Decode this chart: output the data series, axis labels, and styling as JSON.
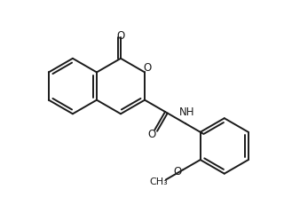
{
  "bg_color": "#ffffff",
  "line_color": "#1a1a1a",
  "line_width": 1.4,
  "figsize": [
    3.2,
    2.32
  ],
  "dpi": 100,
  "xlim": [
    0,
    10
  ],
  "ylim": [
    0,
    7.25
  ]
}
